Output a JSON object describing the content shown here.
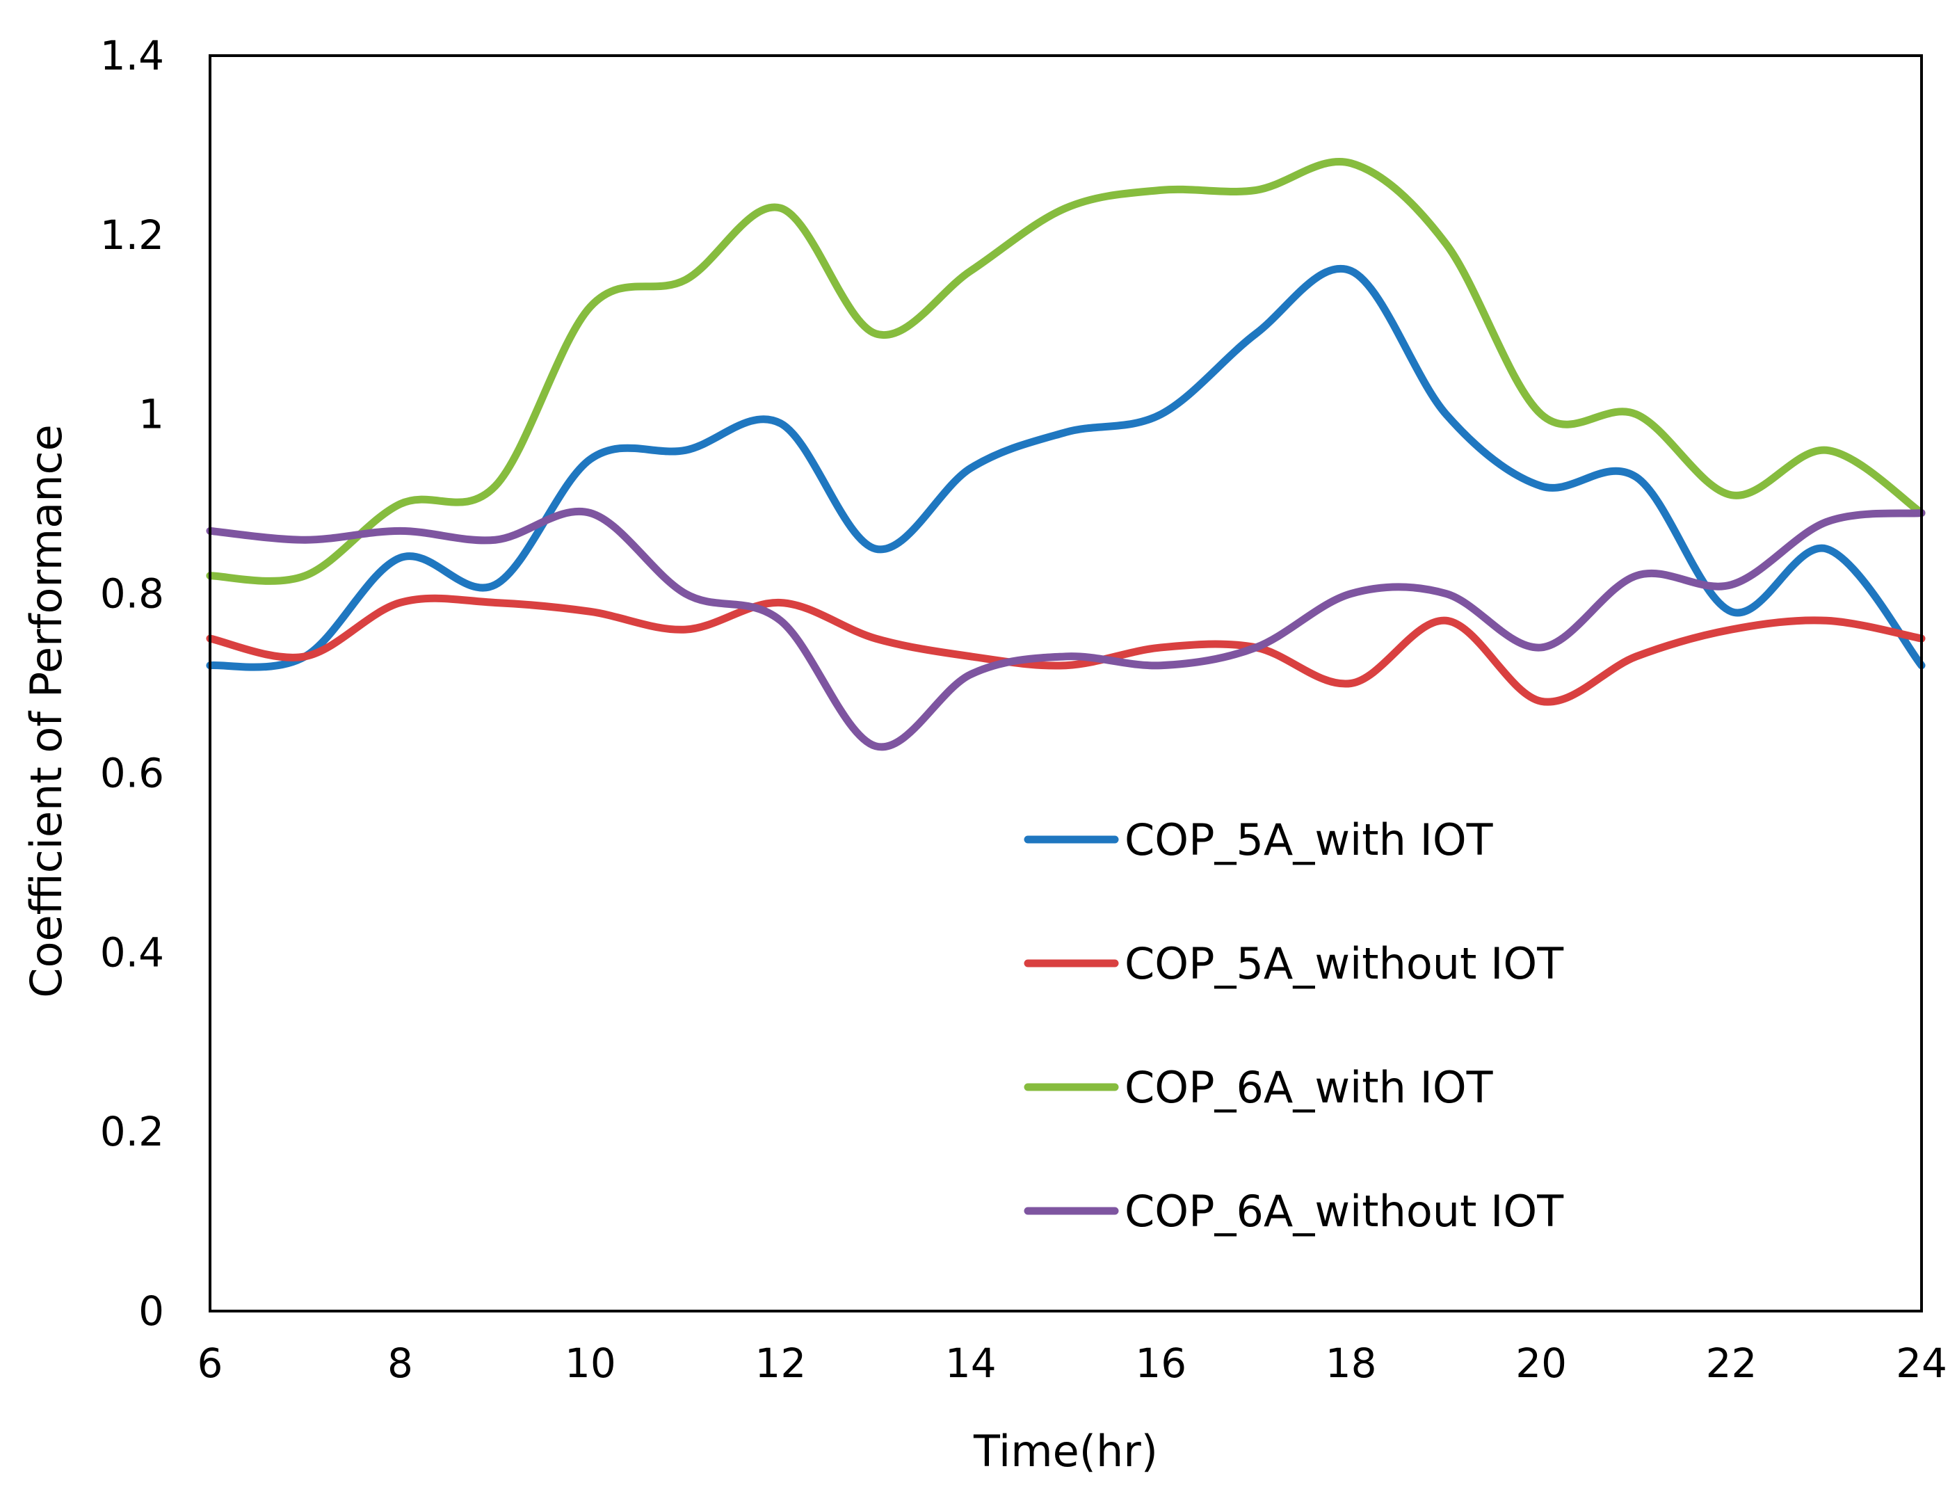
{
  "chart_data": {
    "type": "line",
    "title": "",
    "xlabel": "Time(hr)",
    "ylabel": "Coefficient of Performance",
    "xlim": [
      6,
      24
    ],
    "ylim": [
      0,
      1.4
    ],
    "xticks": [
      "6",
      "8",
      "10",
      "12",
      "14",
      "16",
      "18",
      "20",
      "22",
      "24"
    ],
    "yticks": [
      "0",
      "0.2",
      "0.4",
      "0.6",
      "0.8",
      "1",
      "1.2",
      "1.4"
    ],
    "grid": false,
    "legend_position": "lower-right",
    "x": [
      6,
      7,
      8,
      9,
      10,
      11,
      12,
      13,
      14,
      15,
      16,
      17,
      18,
      19,
      20,
      21,
      22,
      23,
      24
    ],
    "series": [
      {
        "name": "COP_5A_with IOT",
        "color": "#1F77C0",
        "values": [
          0.72,
          0.73,
          0.84,
          0.81,
          0.95,
          0.96,
          0.99,
          0.85,
          0.94,
          0.98,
          1.0,
          1.09,
          1.16,
          1.0,
          0.92,
          0.93,
          0.78,
          0.85,
          0.72
        ]
      },
      {
        "name": "COP_5A_without IOT",
        "color": "#D94040",
        "values": [
          0.75,
          0.73,
          0.79,
          0.79,
          0.78,
          0.76,
          0.79,
          0.75,
          0.73,
          0.72,
          0.74,
          0.74,
          0.7,
          0.77,
          0.68,
          0.73,
          0.76,
          0.77,
          0.75
        ]
      },
      {
        "name": "COP_6A_with IOT",
        "color": "#86BC3E",
        "values": [
          0.82,
          0.82,
          0.9,
          0.92,
          1.12,
          1.15,
          1.23,
          1.09,
          1.16,
          1.23,
          1.25,
          1.25,
          1.28,
          1.19,
          1.0,
          1.0,
          0.91,
          0.96,
          0.89
        ]
      },
      {
        "name": "COP_6A_without IOT",
        "color": "#7E55A0",
        "values": [
          0.87,
          0.86,
          0.87,
          0.86,
          0.89,
          0.8,
          0.77,
          0.63,
          0.71,
          0.73,
          0.72,
          0.74,
          0.8,
          0.8,
          0.74,
          0.82,
          0.81,
          0.88,
          0.89
        ]
      }
    ]
  }
}
